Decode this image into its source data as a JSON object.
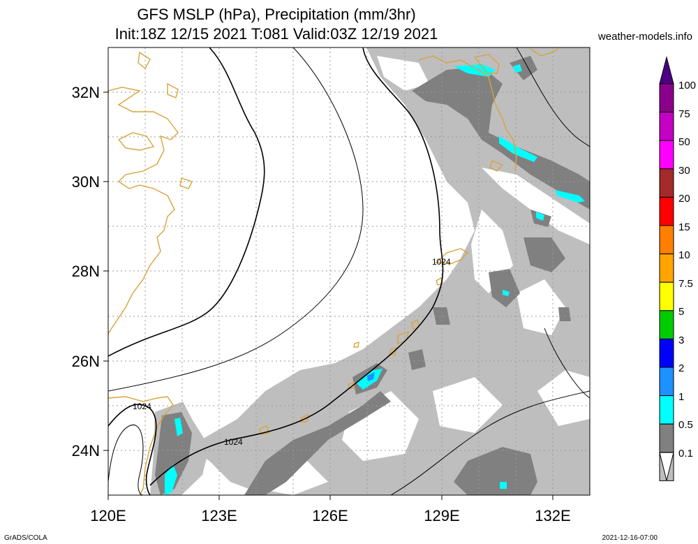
{
  "title": {
    "line1": "GFS MSLP (hPa), Precipitation (mm/3hr)",
    "line2": "Init:18Z 12/15 2021 T:081 Valid:03Z 12/19 2021"
  },
  "source": "weather-models.info",
  "axes": {
    "x_ticks": [
      "120E",
      "123E",
      "126E",
      "129E",
      "132E"
    ],
    "y_ticks": [
      "32N",
      "30N",
      "28N",
      "26N",
      "24N"
    ],
    "lon_range": [
      120,
      133
    ],
    "lat_range": [
      23,
      33
    ]
  },
  "isobar_labels": [
    "1024",
    "1024",
    "1024"
  ],
  "colorbar": {
    "levels": [
      "100",
      "75",
      "50",
      "30",
      "20",
      "15",
      "10",
      "7.5",
      "5",
      "3",
      "2",
      "1",
      "0.5",
      "0.1"
    ],
    "colors": [
      "#4b0082",
      "#8b008b",
      "#c400c4",
      "#ff00ff",
      "#a52a2a",
      "#ff0000",
      "#ff7f00",
      "#ffa500",
      "#ffff00",
      "#00cc00",
      "#0000ff",
      "#1e90ff",
      "#00ffff",
      "#808080",
      "#bebebe",
      "#ffffff"
    ]
  },
  "colors": {
    "coastline": "#d9a23a",
    "isobar": "#000000",
    "precip_light": "#bebebe",
    "precip_medium": "#808080",
    "precip_cyan": "#00ffff",
    "precip_blue": "#1e90ff"
  },
  "footer": {
    "left": "GrADS/COLA",
    "right": "2021-12-16-07:00"
  }
}
